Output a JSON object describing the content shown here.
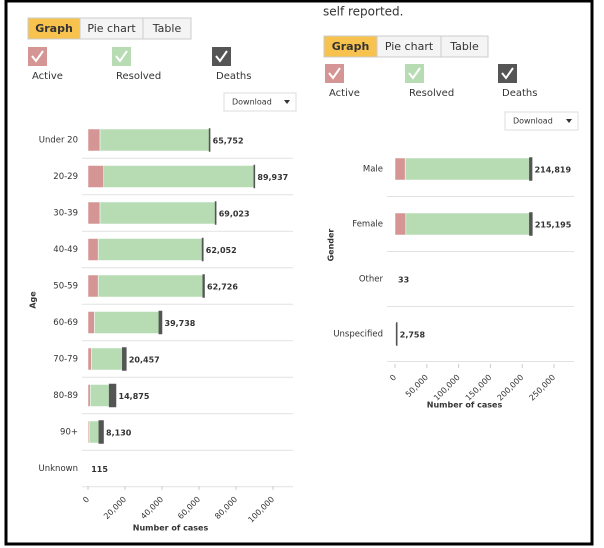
{
  "header_text": "self reported.",
  "panels": [
    {
      "tabs": [
        "Graph",
        "Pie chart",
        "Table"
      ],
      "download": "Download"
    },
    {
      "tabs": [
        "Graph",
        "Pie chart",
        "Table"
      ],
      "download": "Download"
    }
  ],
  "chart_data": [
    {
      "type": "stacked-bar-horizontal",
      "categories": [
        "Under 20",
        "20-29",
        "30-39",
        "40-49",
        "50-59",
        "60-69",
        "70-79",
        "80-89",
        "90+",
        "Unknown"
      ],
      "series": [
        {
          "name": "Active",
          "color": "#d49594",
          "values": [
            6500,
            8500,
            6500,
            5500,
            5500,
            3500,
            1800,
            1200,
            600,
            15
          ]
        },
        {
          "name": "Resolved",
          "color": "#b7dcb4",
          "values": [
            59200,
            81400,
            62470,
            56400,
            56800,
            35050,
            17000,
            10500,
            5500,
            100
          ]
        },
        {
          "name": "Deaths",
          "color": "#555555",
          "values": [
            52,
            37,
            53,
            152,
            426,
            1188,
            1657,
            3175,
            2030,
            0
          ]
        }
      ],
      "totals": [
        65752,
        89937,
        69023,
        62052,
        62726,
        39738,
        20457,
        14875,
        8130,
        115
      ],
      "total_labels": [
        "65,752",
        "89,937",
        "69,023",
        "62,052",
        "62,726",
        "39,738",
        "20,457",
        "14,875",
        "8,130",
        "115"
      ],
      "xlim": [
        0,
        100000
      ],
      "xticks": [
        0,
        {
          "value": 20000,
          "label": "20,000"
        },
        {
          "value": 40000,
          "label": "40,000"
        },
        {
          "value": 60000,
          "label": "60,000"
        },
        {
          "value": 80000,
          "label": "80,000"
        },
        {
          "value": 100000,
          "label": "100,000"
        }
      ],
      "y_label": "Age",
      "x_label": "Number of cases"
    },
    {
      "type": "stacked-bar-horizontal",
      "categories": [
        "Male",
        "Female",
        "Other",
        "Unspecified"
      ],
      "series": [
        {
          "name": "Active",
          "color": "#d49594",
          "values": [
            16000,
            17000,
            5,
            300
          ]
        },
        {
          "name": "Resolved",
          "color": "#b7dcb4",
          "values": [
            196000,
            195000,
            28,
            2450
          ]
        },
        {
          "name": "Deaths",
          "color": "#555555",
          "values": [
            2819,
            3195,
            0,
            8
          ]
        }
      ],
      "totals": [
        214819,
        215195,
        33,
        2758
      ],
      "total_labels": [
        "214,819",
        "215,195",
        "33",
        "2,758"
      ],
      "xlim": [
        0,
        250000
      ],
      "xticks": [
        0,
        {
          "value": 50000,
          "label": "50,000"
        },
        {
          "value": 100000,
          "label": "100,000"
        },
        {
          "value": 150000,
          "label": "150,000"
        },
        {
          "value": 200000,
          "label": "200,000"
        },
        {
          "value": 250000,
          "label": "250,000"
        }
      ],
      "y_label": "Gender",
      "x_label": "Number of cases"
    }
  ]
}
